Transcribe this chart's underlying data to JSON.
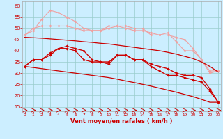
{
  "x": [
    0,
    1,
    2,
    3,
    4,
    5,
    6,
    7,
    8,
    9,
    10,
    11,
    12,
    13,
    14,
    15,
    16,
    17,
    18,
    19,
    20,
    21,
    22,
    23
  ],
  "series": [
    {
      "name": "light1",
      "color": "#f0a0a0",
      "linewidth": 0.8,
      "markersize": 2.0,
      "y": [
        47,
        50,
        51,
        51,
        51,
        51,
        50,
        49,
        49,
        49,
        51,
        51,
        50,
        49,
        49,
        48,
        47,
        47,
        46,
        45,
        41,
        36,
        31,
        31
      ]
    },
    {
      "name": "light2",
      "color": "#f0a0a0",
      "linewidth": 0.8,
      "markersize": 2.0,
      "y": [
        47,
        49,
        54,
        58,
        57,
        55,
        53,
        50,
        49,
        49,
        50,
        51,
        51,
        50,
        50,
        47,
        47,
        48,
        44,
        40,
        40,
        36,
        30,
        31
      ]
    },
    {
      "name": "medium1",
      "color": "#e06060",
      "linewidth": 0.8,
      "markersize": 2.0,
      "y": [
        33,
        36,
        36,
        38,
        41,
        41,
        40,
        36,
        35,
        35,
        35,
        38,
        38,
        36,
        36,
        33,
        31,
        29,
        29,
        28,
        27,
        26,
        22,
        17
      ]
    },
    {
      "name": "medium2",
      "color": "#e06060",
      "linewidth": 0.8,
      "markersize": 2.0,
      "y": [
        33,
        36,
        36,
        39,
        41,
        42,
        41,
        40,
        36,
        35,
        34,
        38,
        38,
        36,
        36,
        34,
        33,
        32,
        30,
        29,
        29,
        28,
        23,
        17
      ]
    },
    {
      "name": "dark_straight",
      "color": "#cc0000",
      "linewidth": 0.9,
      "markersize": 0,
      "y": [
        46,
        45.8,
        45.6,
        45.3,
        45.0,
        44.7,
        44.4,
        44.0,
        43.7,
        43.3,
        43.0,
        42.5,
        42.0,
        41.5,
        41.0,
        40.5,
        40.0,
        39.3,
        38.5,
        37.5,
        36.5,
        35.0,
        33.0,
        30.5
      ]
    },
    {
      "name": "dark_straight2",
      "color": "#cc0000",
      "linewidth": 0.9,
      "markersize": 0,
      "y": [
        33,
        32.5,
        32.0,
        31.5,
        31.0,
        30.5,
        30.0,
        29.5,
        29.0,
        28.5,
        28.0,
        27.3,
        26.5,
        25.8,
        25.0,
        24.2,
        23.3,
        22.4,
        21.5,
        20.5,
        19.5,
        18.3,
        17.0,
        17.0
      ]
    },
    {
      "name": "dark_jagged1",
      "color": "#cc0000",
      "linewidth": 0.8,
      "markersize": 2.0,
      "y": [
        33,
        36,
        36,
        38,
        41,
        41,
        40,
        36,
        35,
        35,
        35,
        38,
        38,
        36,
        36,
        33,
        31,
        29,
        29,
        28,
        27,
        26,
        22,
        17
      ]
    },
    {
      "name": "dark_jagged2",
      "color": "#cc0000",
      "linewidth": 0.8,
      "markersize": 2.0,
      "y": [
        33,
        36,
        36,
        39,
        41,
        42,
        41,
        40,
        36,
        35,
        34,
        38,
        38,
        36,
        36,
        34,
        33,
        32,
        30,
        29,
        29,
        28,
        23,
        17
      ]
    }
  ],
  "xlim": [
    -0.3,
    23.3
  ],
  "ylim": [
    13,
    62
  ],
  "yticks": [
    15,
    20,
    25,
    30,
    35,
    40,
    45,
    50,
    55,
    60
  ],
  "xticks": [
    0,
    1,
    2,
    3,
    4,
    5,
    6,
    7,
    8,
    9,
    10,
    11,
    12,
    13,
    14,
    15,
    16,
    17,
    18,
    19,
    20,
    21,
    22,
    23
  ],
  "xlabel": "Vent moyen/en rafales ( km/h )",
  "bg_color": "#cceeff",
  "grid_color": "#99cccc",
  "tick_color": "#cc0000",
  "label_color": "#cc0000"
}
